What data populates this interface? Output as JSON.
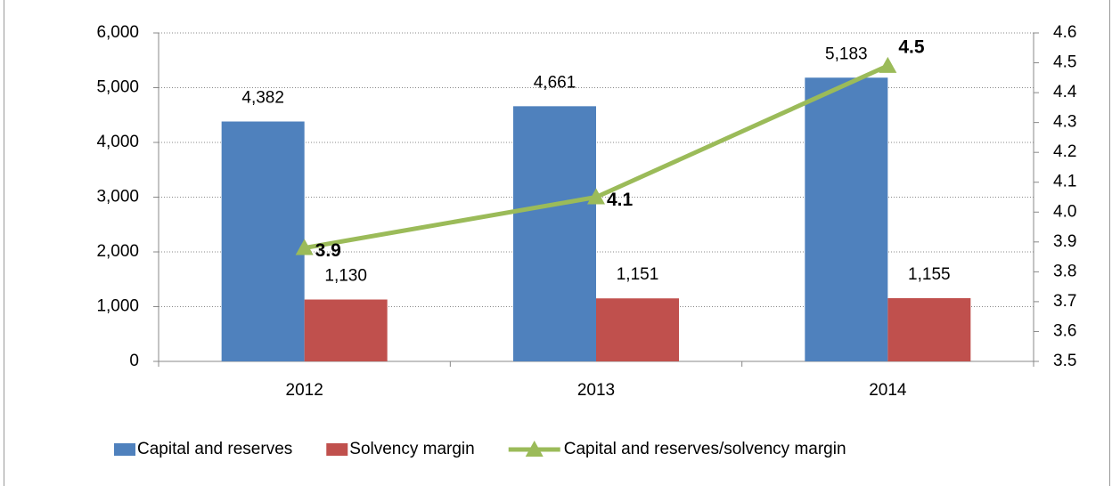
{
  "chart_data": {
    "type": "bar",
    "categories": [
      "2012",
      "2013",
      "2014"
    ],
    "series": [
      {
        "name": "Capital and reserves",
        "color": "#4f81bd",
        "values": [
          4382,
          4661,
          5183
        ],
        "value_labels": [
          "4,382",
          "4,661",
          "5,183"
        ]
      },
      {
        "name": "Solvency margin",
        "color": "#c0504d",
        "values": [
          1130,
          1151,
          1155
        ],
        "value_labels": [
          "1,130",
          "1,151",
          "1,155"
        ]
      },
      {
        "name": "Capital and reserves/solvency margin",
        "type": "line",
        "axis": "y2",
        "color": "#9bbb59",
        "values": [
          3.88,
          4.05,
          4.49
        ],
        "value_labels": [
          "3.9",
          "4.1",
          "4.5"
        ]
      }
    ],
    "ylim": [
      0,
      6000
    ],
    "yticks": [
      0,
      {
        "value": 1000,
        "label": "1,000"
      },
      {
        "value": 2000,
        "label": "2,000"
      },
      {
        "value": 3000,
        "label": "3,000"
      },
      {
        "value": 4000,
        "label": "4,000"
      },
      {
        "value": 5000,
        "label": "5,000"
      },
      {
        "value": 6000,
        "label": "6,000"
      }
    ],
    "y2lim": [
      3.5,
      4.6
    ],
    "y2ticks": [
      3.5,
      3.6,
      3.7,
      3.8,
      3.9,
      {
        "value": 4.0,
        "label": "4.0"
      },
      4.1,
      4.2,
      4.3,
      4.4,
      4.5,
      4.6
    ],
    "grid": true,
    "legend": "bottom"
  }
}
